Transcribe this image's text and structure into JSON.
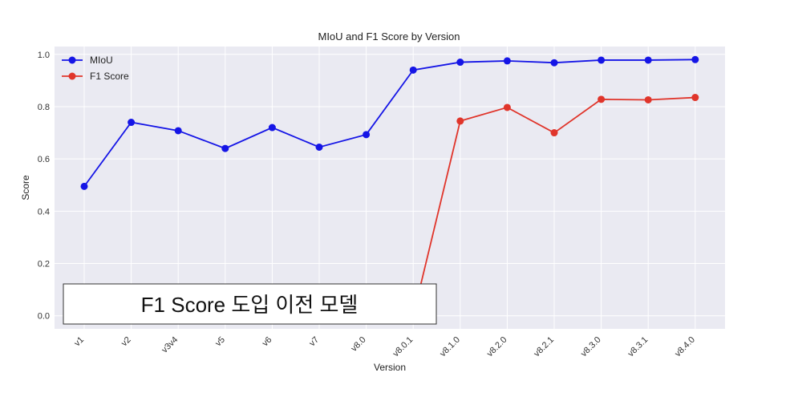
{
  "chart_data": {
    "type": "line",
    "title": "MIoU and F1 Score by Version",
    "xlabel": "Version",
    "ylabel": "Score",
    "categories": [
      "v1",
      "v2",
      "v3v4",
      "v5",
      "v6",
      "v7",
      "v8.0",
      "v8.0.1",
      "v8.1.0",
      "v8.2.0",
      "v8.2.1",
      "v8.3.0",
      "v8.3.1",
      "v8.4.0"
    ],
    "series": [
      {
        "name": "MIoU",
        "color": "#1515e6",
        "values": [
          0.495,
          0.74,
          0.708,
          0.64,
          0.72,
          0.645,
          0.693,
          0.94,
          0.97,
          0.975,
          0.968,
          0.978,
          0.978,
          0.98
        ]
      },
      {
        "name": "F1 Score",
        "color": "#e0352b",
        "values": [
          null,
          null,
          null,
          null,
          null,
          null,
          null,
          0.0,
          0.745,
          0.797,
          0.7,
          0.828,
          0.826,
          0.835
        ]
      }
    ],
    "ylim": [
      -0.05,
      1.03
    ],
    "yticks": [
      "0.0",
      "0.2",
      "0.4",
      "0.6",
      "0.8",
      "1.0"
    ],
    "grid": true,
    "legend": "top-left",
    "annotation": "F1 Score 도입 이전 모델"
  }
}
